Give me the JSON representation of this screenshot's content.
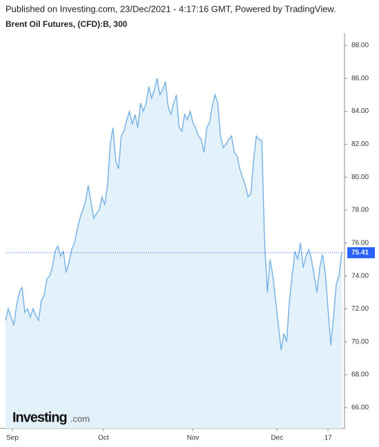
{
  "header": {
    "published": "Published on Investing.com, 23/Dec/2021 - 4:17:16 GMT, Powered by TradingView.",
    "logo_main": "Investing",
    "logo_suffix": ".com"
  },
  "chart_data": {
    "type": "area",
    "title": "Brent Oil Futures, (CFD):B, 300",
    "color": "#7ab4e6",
    "fill": "#e3f1fa",
    "values": [
      71.3,
      72.0,
      71.5,
      71.0,
      72.2,
      73.0,
      73.3,
      71.8,
      72.0,
      71.5,
      72.0,
      71.6,
      71.3,
      72.5,
      72.8,
      73.8,
      74.0,
      74.5,
      75.5,
      75.8,
      75.2,
      75.5,
      74.2,
      74.8,
      75.6,
      76.0,
      76.8,
      77.5,
      78.0,
      78.5,
      79.5,
      78.5,
      77.5,
      77.8,
      78.0,
      78.8,
      78.3,
      79.5,
      82.0,
      83.0,
      81.0,
      80.5,
      82.5,
      82.8,
      83.5,
      84.0,
      83.2,
      83.8,
      83.0,
      84.5,
      84.0,
      84.5,
      85.5,
      84.8,
      85.3,
      86.0,
      85.0,
      85.3,
      85.8,
      84.3,
      83.8,
      84.5,
      85.0,
      83.0,
      82.8,
      83.8,
      83.5,
      84.0,
      83.3,
      83.0,
      82.5,
      82.3,
      81.5,
      83.0,
      83.3,
      84.3,
      85.0,
      84.5,
      82.5,
      81.8,
      82.0,
      82.3,
      82.5,
      81.5,
      81.3,
      80.5,
      80.0,
      79.5,
      78.8,
      79.0,
      81.0,
      82.5,
      82.3,
      82.2,
      76.0,
      73.0,
      75.0,
      74.0,
      72.5,
      71.0,
      69.5,
      70.5,
      70.0,
      72.5,
      74.0,
      75.5,
      75.0,
      76.0,
      74.5,
      75.2,
      75.6,
      75.0,
      74.0,
      73.0,
      74.5,
      75.3,
      74.2,
      72.0,
      69.8,
      71.5,
      73.5,
      74.0,
      75.41
    ],
    "current_price": 75.41,
    "price_line_color": "#2962ff",
    "xlim": [
      0,
      122
    ],
    "xticks": [
      {
        "value": 2.5,
        "label": "Sep"
      },
      {
        "value": 35.5,
        "label": "Oct"
      },
      {
        "value": 68,
        "label": "Nov"
      },
      {
        "value": 98.5,
        "label": "Dec"
      },
      {
        "value": 117,
        "label": "17"
      }
    ],
    "ylim": [
      64.74,
      88.75
    ],
    "yticks": [
      {
        "value": 66,
        "label": "66.00"
      },
      {
        "value": 68,
        "label": "68.00"
      },
      {
        "value": 70,
        "label": "70.00"
      },
      {
        "value": 72,
        "label": "72.00"
      },
      {
        "value": 74,
        "label": "74.00"
      },
      {
        "value": 76,
        "label": "76.00"
      },
      {
        "value": 78,
        "label": "78.00"
      },
      {
        "value": 80,
        "label": "80.00"
      },
      {
        "value": 82,
        "label": "82.00"
      },
      {
        "value": 84,
        "label": "84.00"
      },
      {
        "value": 86,
        "label": "86.00"
      },
      {
        "value": 88,
        "label": "88.00"
      }
    ]
  }
}
